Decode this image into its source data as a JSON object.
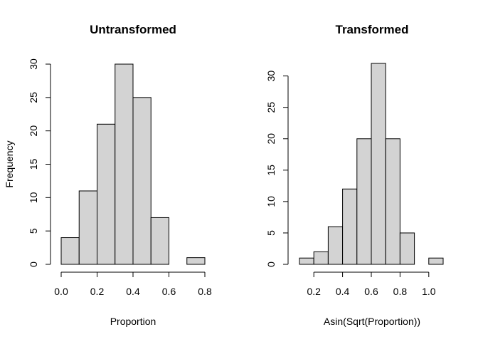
{
  "chart_data": [
    {
      "type": "bar",
      "title": "Untransformed",
      "xlabel": "Proportion",
      "ylabel": "Frequency",
      "bin_edges": [
        0.0,
        0.1,
        0.2,
        0.3,
        0.4,
        0.5,
        0.6,
        0.7,
        0.8
      ],
      "values": [
        4,
        11,
        21,
        30,
        25,
        7,
        0,
        1
      ],
      "xlim": [
        0.0,
        0.8
      ],
      "ylim": [
        0,
        30
      ],
      "xticks": [
        0.0,
        0.2,
        0.4,
        0.6,
        0.8
      ],
      "xtick_labels": [
        "0.0",
        "0.2",
        "0.4",
        "0.6",
        "0.8"
      ],
      "yticks": [
        0,
        5,
        10,
        15,
        20,
        25,
        30
      ],
      "ytick_labels": [
        "0",
        "5",
        "10",
        "15",
        "20",
        "25",
        "30"
      ],
      "bar_color": "#d3d3d3",
      "grid": false
    },
    {
      "type": "bar",
      "title": "Transformed",
      "xlabel": "Asin(Sqrt(Proportion))",
      "ylabel": "",
      "bin_edges": [
        0.1,
        0.2,
        0.3,
        0.4,
        0.5,
        0.6,
        0.7,
        0.8,
        0.9,
        1.0,
        1.1
      ],
      "values": [
        1,
        2,
        6,
        12,
        20,
        32,
        20,
        5,
        0,
        1
      ],
      "xlim": [
        0.1,
        1.1
      ],
      "ylim": [
        0,
        32
      ],
      "xticks": [
        0.2,
        0.4,
        0.6,
        0.8,
        1.0
      ],
      "xtick_labels": [
        "0.2",
        "0.4",
        "0.6",
        "0.8",
        "1.0"
      ],
      "yticks": [
        0,
        5,
        10,
        15,
        20,
        25,
        30
      ],
      "ytick_labels": [
        "0",
        "5",
        "10",
        "15",
        "20",
        "25",
        "30"
      ],
      "bar_color": "#d3d3d3",
      "grid": false
    }
  ]
}
